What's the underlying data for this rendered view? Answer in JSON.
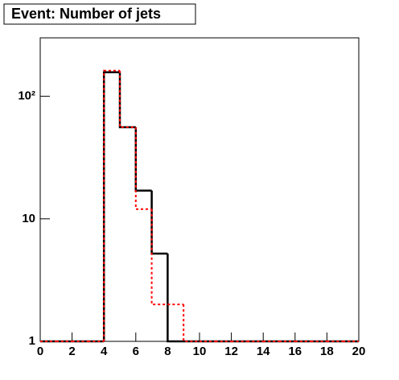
{
  "chart_data": {
    "type": "histogram",
    "title": "Event: Number of jets",
    "bins": [
      0,
      1,
      2,
      3,
      4,
      5,
      6,
      7,
      8,
      9,
      10,
      11,
      12,
      13,
      14,
      15,
      16,
      17,
      18,
      19,
      20
    ],
    "series": [
      {
        "color": "#000000",
        "dashed": false,
        "values": [
          0,
          0,
          0,
          0,
          157,
          56,
          17,
          5.2,
          0,
          0,
          0,
          0,
          0,
          0,
          0,
          0,
          0,
          0,
          0,
          0
        ]
      },
      {
        "color": "#ff0000",
        "dashed": true,
        "values": [
          0,
          0,
          0,
          0,
          162,
          56,
          12,
          2,
          2,
          0,
          0,
          0,
          0,
          0,
          0,
          0,
          0,
          0,
          0,
          0
        ]
      }
    ],
    "xlim": [
      0,
      20
    ],
    "xticks": [
      0,
      2,
      4,
      6,
      8,
      10,
      12,
      14,
      16,
      18,
      20
    ],
    "ylim": [
      1,
      300
    ],
    "ylog": true,
    "yticks": [
      1,
      10,
      {
        "value": 100,
        "label": "10²"
      }
    ]
  }
}
